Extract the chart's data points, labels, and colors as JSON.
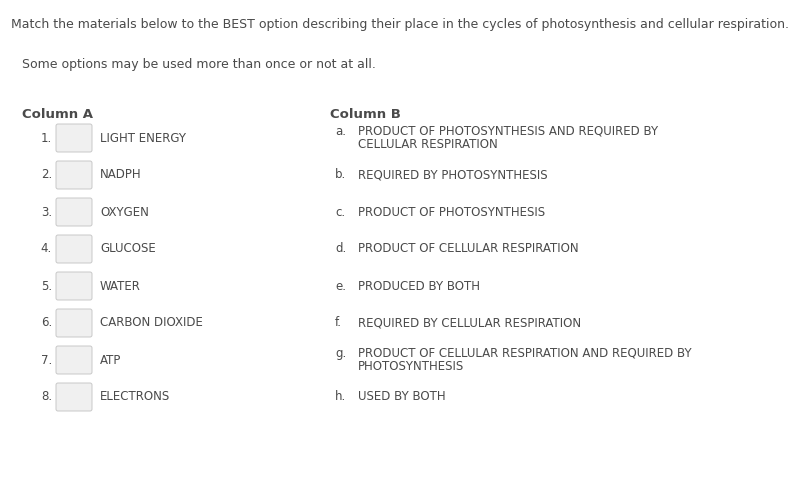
{
  "title": "Match the materials below to the BEST option describing their place in the cycles of photosynthesis and cellular respiration.",
  "subtitle": "Some options may be used more than once or not at all.",
  "col_a_header": "Column A",
  "col_b_header": "Column B",
  "col_a_labels": [
    "1.",
    "2.",
    "3.",
    "4.",
    "5.",
    "6.",
    "7.",
    "8."
  ],
  "col_a_texts": [
    "LIGHT ENERGY",
    "NADPH",
    "OXYGEN",
    "GLUCOSE",
    "WATER",
    "CARBON DIOXIDE",
    "ATP",
    "ELECTRONS"
  ],
  "col_b_letters": [
    "a.",
    "b.",
    "c.",
    "d.",
    "e.",
    "f.",
    "g.",
    "h."
  ],
  "col_b_line1": [
    "PRODUCT OF PHOTOSYNTHESIS AND REQUIRED BY",
    "REQUIRED BY PHOTOSYNTHESIS",
    "PRODUCT OF PHOTOSYNTHESIS",
    "PRODUCT OF CELLULAR RESPIRATION",
    "PRODUCED BY BOTH",
    "REQUIRED BY CELLULAR RESPIRATION",
    "PRODUCT OF CELLULAR RESPIRATION AND REQUIRED BY",
    "USED BY BOTH"
  ],
  "col_b_line2": [
    "CELLULAR RESPIRATION",
    "",
    "",
    "",
    "",
    "",
    "PHOTOSYNTHESIS",
    ""
  ],
  "background_color": "#ffffff",
  "text_color": "#4a4a4a",
  "title_fontsize": 9.0,
  "subtitle_fontsize": 9.0,
  "header_fontsize": 9.5,
  "item_fontsize": 8.5,
  "box_fill": "#f0f0f0",
  "box_edge": "#c8c8c8"
}
